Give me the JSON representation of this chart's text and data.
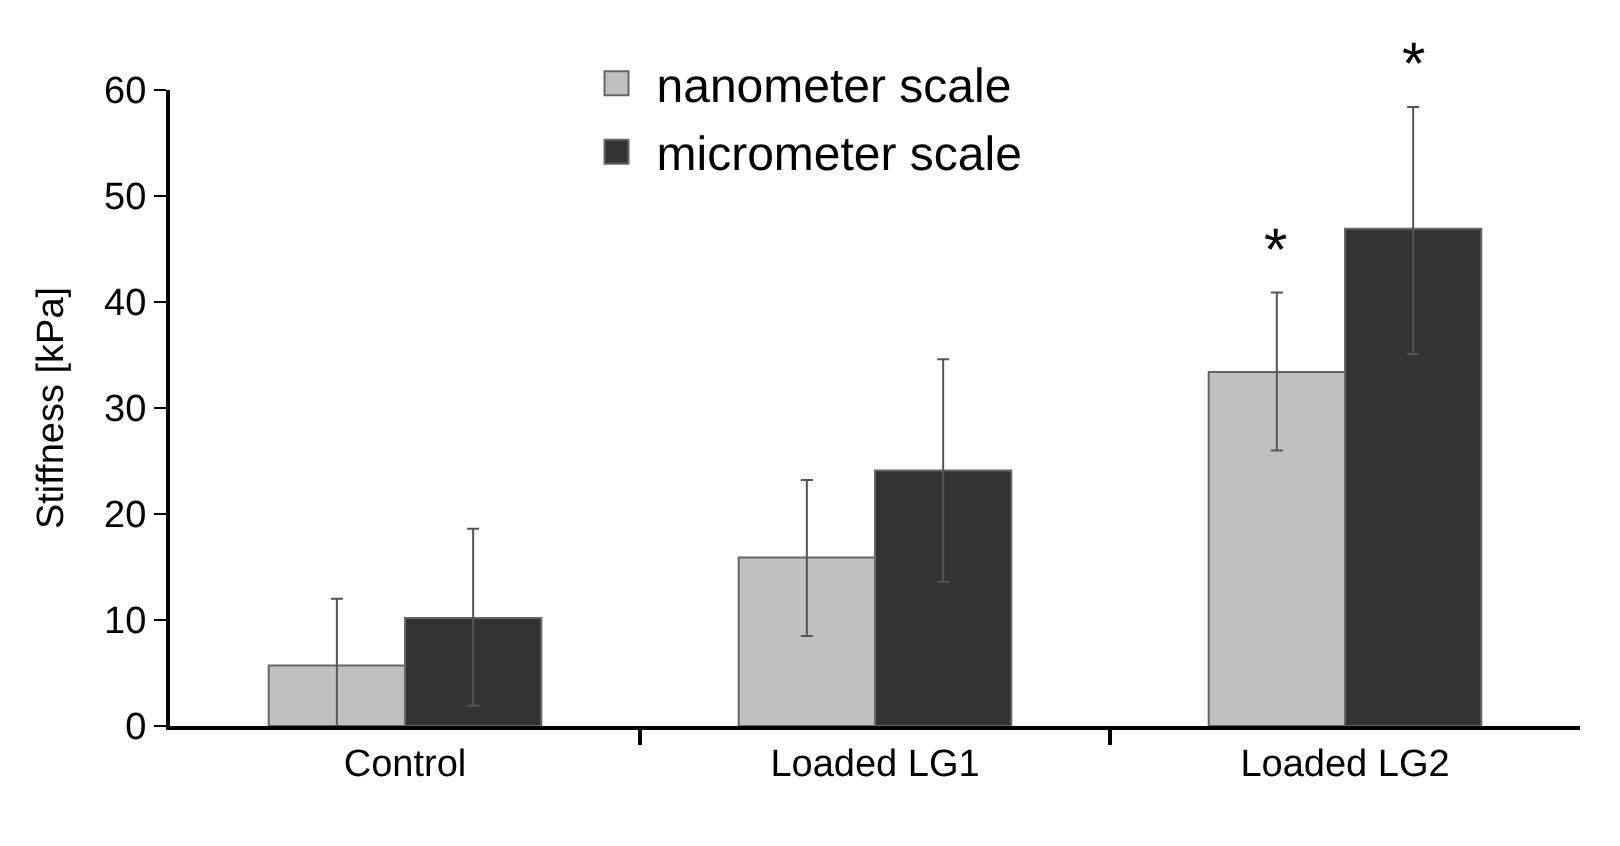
{
  "chart_data": {
    "type": "bar",
    "ylabel": "Stiffness [kPa]",
    "categories": [
      "Control",
      "Loaded LG1",
      "Loaded LG2"
    ],
    "series": [
      {
        "name": "nanometer scale",
        "color": "#c0c0c0",
        "values": [
          5.7,
          15.9,
          33.4
        ],
        "errors": [
          [
            0,
            12.0
          ],
          [
            8.5,
            23.2
          ],
          [
            26.0,
            40.9
          ]
        ]
      },
      {
        "name": "micrometer scale",
        "color": "#333333",
        "values": [
          10.2,
          24.1,
          46.9
        ],
        "errors": [
          [
            1.9,
            18.6
          ],
          [
            13.6,
            34.6
          ],
          [
            35.1,
            58.4
          ]
        ]
      }
    ],
    "ylim": [
      0,
      60
    ],
    "yticks": [
      0,
      10,
      20,
      30,
      40,
      50,
      60
    ],
    "legend": "top",
    "annotations": [
      "*",
      "*"
    ]
  }
}
